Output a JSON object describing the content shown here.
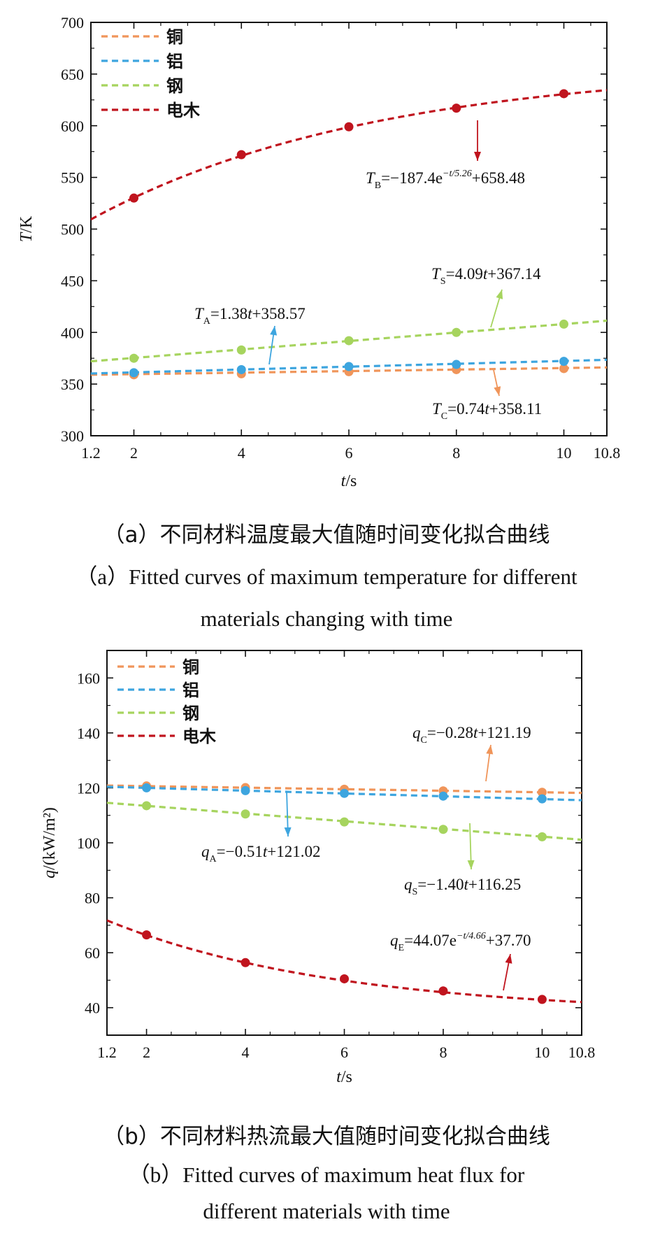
{
  "colors": {
    "copper": "#F0955A",
    "aluminum": "#3DA5DF",
    "steel": "#A6D45E",
    "bakelite": "#C0141E"
  },
  "legend_series": [
    "copper",
    "aluminum",
    "steel",
    "bakelite"
  ],
  "chart_data": [
    {
      "type": "line",
      "title": "",
      "xlabel": "t/s",
      "ylabel": "T/K",
      "xlim": [
        1.2,
        10.8
      ],
      "ylim": [
        300,
        700
      ],
      "xticks": [
        1.2,
        2,
        4,
        6,
        8,
        10,
        10.8
      ],
      "xtick_labels": [
        "1.2",
        "2",
        "4",
        "6",
        "8",
        "10",
        "10.8"
      ],
      "yticks": [
        300,
        350,
        400,
        450,
        500,
        550,
        600,
        650,
        700
      ],
      "ytick_labels": [
        "300",
        "350",
        "400",
        "450",
        "500",
        "550",
        "600",
        "650",
        "700"
      ],
      "series": [
        {
          "key": "copper",
          "name": "铜",
          "x": [
            2,
            4,
            6,
            8,
            10
          ],
          "y": [
            359,
            360,
            362,
            364,
            365
          ],
          "fit": {
            "type": "linear",
            "a": 0.74,
            "b": 358.11
          }
        },
        {
          "key": "aluminum",
          "name": "铝",
          "x": [
            2,
            4,
            6,
            8,
            10
          ],
          "y": [
            361,
            364,
            367,
            369,
            372
          ],
          "fit": {
            "type": "linear",
            "a": 1.38,
            "b": 358.57
          }
        },
        {
          "key": "steel",
          "name": "钢",
          "x": [
            2,
            4,
            6,
            8,
            10
          ],
          "y": [
            375,
            383,
            392,
            400,
            408
          ],
          "fit": {
            "type": "linear",
            "a": 4.09,
            "b": 367.14
          }
        },
        {
          "key": "bakelite",
          "name": "电木",
          "x": [
            2,
            4,
            6,
            8,
            10
          ],
          "y": [
            530,
            572,
            599,
            617,
            631
          ],
          "fit": {
            "type": "exp",
            "A": -187.4,
            "tau": 5.26,
            "C": 658.48
          }
        }
      ],
      "annotations": [
        {
          "key": "bakelite",
          "sym": "T",
          "sub": "B",
          "text": "=−187.4e",
          "sup": "−t/5.26",
          "tail": "+658.48"
        },
        {
          "key": "steel",
          "sym": "T",
          "sub": "S",
          "text": "=4.09",
          "var": "t",
          "tail": "+367.14"
        },
        {
          "key": "aluminum",
          "sym": "T",
          "sub": "A",
          "text": "=1.38",
          "var": "t",
          "tail": "+358.57"
        },
        {
          "key": "copper",
          "sym": "T",
          "sub": "C",
          "text": "=0.74",
          "var": "t",
          "tail": "+358.11"
        }
      ],
      "caption_zh": "（a）不同材料温度最大值随时间变化拟合曲线",
      "caption_en1": "（a）Fitted curves of maximum temperature for different",
      "caption_en2": "materials changing with time"
    },
    {
      "type": "line",
      "title": "",
      "xlabel": "t/s",
      "ylabel": "q/(kW/m²)",
      "xlim": [
        1.2,
        10.8
      ],
      "ylim": [
        30,
        170
      ],
      "xticks": [
        1.2,
        2,
        4,
        6,
        8,
        10,
        10.8
      ],
      "xtick_labels": [
        "1.2",
        "2",
        "4",
        "6",
        "8",
        "10",
        "10.8"
      ],
      "yticks": [
        40,
        60,
        80,
        100,
        120,
        140,
        160
      ],
      "ytick_labels": [
        "40",
        "60",
        "80",
        "100",
        "120",
        "140",
        "160"
      ],
      "series": [
        {
          "key": "copper",
          "name": "铜",
          "x": [
            2,
            4,
            6,
            8,
            10
          ],
          "y": [
            120.7,
            120.1,
            119.5,
            118.9,
            118.4
          ],
          "fit": {
            "type": "linear",
            "a": -0.28,
            "b": 121.19
          }
        },
        {
          "key": "aluminum",
          "name": "铝",
          "x": [
            2,
            4,
            6,
            8,
            10
          ],
          "y": [
            120.0,
            119.0,
            118.0,
            117.0,
            116.0
          ],
          "fit": {
            "type": "linear",
            "a": -0.51,
            "b": 121.02
          }
        },
        {
          "key": "steel",
          "name": "钢",
          "x": [
            2,
            4,
            6,
            8,
            10
          ],
          "y": [
            113.5,
            110.5,
            107.6,
            104.9,
            102.2
          ],
          "fit": {
            "type": "linear",
            "a": -1.4,
            "b": 116.25
          }
        },
        {
          "key": "bakelite",
          "name": "电木",
          "x": [
            2,
            4,
            6,
            8,
            10
          ],
          "y": [
            66.5,
            56.4,
            50.5,
            46.1,
            43.0
          ],
          "fit": {
            "type": "exp",
            "A": 44.07,
            "tau": 4.66,
            "C": 37.7
          }
        }
      ],
      "annotations": [
        {
          "key": "copper",
          "sym": "q",
          "sub": "C",
          "text": "=−0.28",
          "var": "t",
          "tail": "+121.19"
        },
        {
          "key": "aluminum",
          "sym": "q",
          "sub": "A",
          "text": "=−0.51",
          "var": "t",
          "tail": "+121.02"
        },
        {
          "key": "steel",
          "sym": "q",
          "sub": "S",
          "text": "=−1.40",
          "var": "t",
          "tail": "+116.25"
        },
        {
          "key": "bakelite",
          "sym": "q",
          "sub": "E",
          "text": "=44.07e",
          "sup": "−t/4.66",
          "tail": "+37.70"
        }
      ],
      "caption_zh": "（b）不同材料热流最大值随时间变化拟合曲线",
      "caption_en1": "（b）Fitted curves of maximum heat flux for",
      "caption_en2": "different materials with time"
    }
  ]
}
